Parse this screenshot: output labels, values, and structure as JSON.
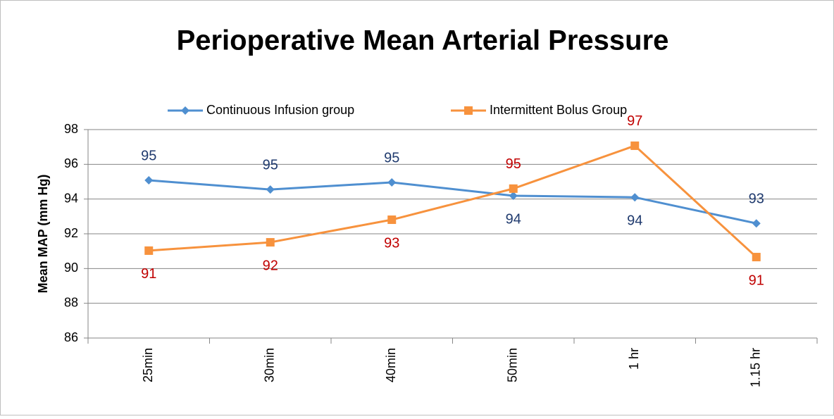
{
  "chart_data": {
    "type": "line",
    "title": "Perioperative Mean Arterial Pressure",
    "y_label": "Mean MAP (mm Hg)",
    "categories": [
      "25min",
      "30min",
      "40min",
      "50min",
      "1 hr",
      "1.15 hr"
    ],
    "series": [
      {
        "name": "Continuous Infusion group",
        "color": "#4f8fd0",
        "label_color": "#1f3a6e",
        "marker": "diamond",
        "values": [
          95.08,
          94.55,
          94.96,
          94.19,
          94.1,
          92.6
        ],
        "value_labels": [
          "95",
          "95",
          "95",
          "94",
          "94",
          "93"
        ]
      },
      {
        "name": "Intermittent Bolus Group",
        "color": "#f7923d",
        "label_color": "#c00000",
        "marker": "square",
        "values": [
          91.03,
          91.51,
          92.81,
          94.6,
          97.07,
          90.66
        ],
        "value_labels": [
          "91",
          "92",
          "93",
          "95",
          "97",
          "91"
        ]
      }
    ],
    "ylim": [
      86,
      98
    ],
    "yticks": [
      86,
      88,
      90,
      92,
      94,
      96,
      98
    ],
    "grid": true,
    "legend": "top"
  }
}
